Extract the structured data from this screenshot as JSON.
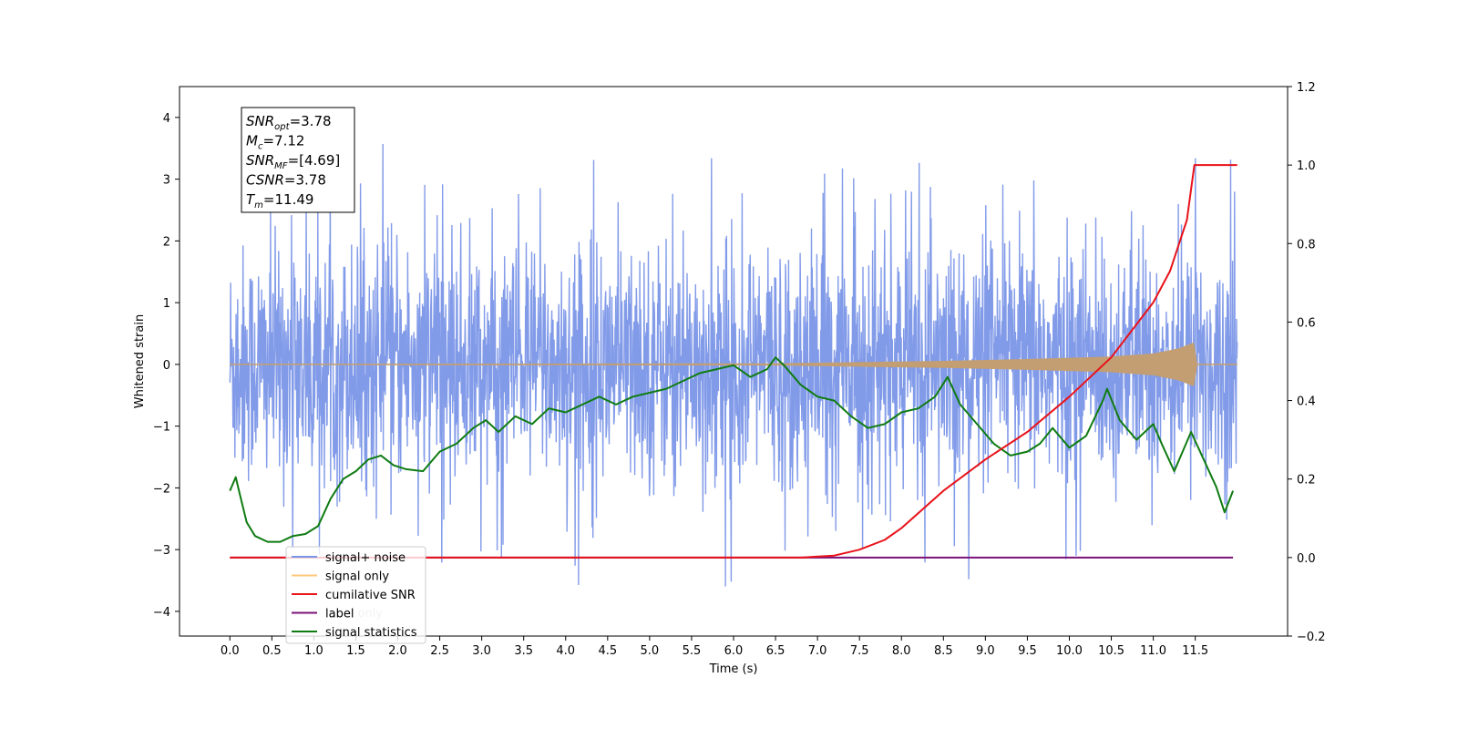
{
  "chart_data": {
    "type": "line",
    "xlabel": "Time (s)",
    "ylabel": "Whitened strain",
    "xlim": [
      -0.6,
      12.6
    ],
    "ylim_left": [
      -4.4,
      4.5
    ],
    "ylim_right": [
      -0.2,
      1.2
    ],
    "x_ticks": [
      0.0,
      0.5,
      1.0,
      1.5,
      2.0,
      2.5,
      3.0,
      3.5,
      4.0,
      4.5,
      5.0,
      5.5,
      6.0,
      6.5,
      7.0,
      7.5,
      8.0,
      8.5,
      9.0,
      9.5,
      10.0,
      10.5,
      11.0,
      11.5
    ],
    "x_tick_labels": [
      "0.0",
      "0.5",
      "1.0",
      "1.5",
      "2.0",
      "2.5",
      "3.0",
      "3.5",
      "4.0",
      "4.5",
      "5.0",
      "5.5",
      "6.0",
      "6.5",
      "7.0",
      "7.5",
      "8.0",
      "8.5",
      "9.0",
      "9.5",
      "10.0",
      "10.5",
      "11.0",
      "11.5"
    ],
    "y_left_ticks": [
      -4,
      -3,
      -2,
      -1,
      0,
      1,
      2,
      3,
      4
    ],
    "y_left_tick_labels": [
      "−4",
      "−3",
      "−2",
      "−1",
      "0",
      "1",
      "2",
      "3",
      "4"
    ],
    "y_right_ticks": [
      -0.2,
      0.0,
      0.2,
      0.4,
      0.6,
      0.8,
      1.0,
      1.2
    ],
    "y_right_tick_labels": [
      "−0.2",
      "0.0",
      "0.2",
      "0.4",
      "0.6",
      "0.8",
      "1.0",
      "1.2"
    ],
    "info_box": {
      "lines": [
        {
          "sym": "SNR",
          "sub": "opt",
          "val": "=3.78"
        },
        {
          "sym": "M",
          "sub": "c",
          "val": "=7.12"
        },
        {
          "sym": "SNR",
          "sub": "MF",
          "val": "=[4.69]"
        },
        {
          "sym": "CSNR",
          "sub": "",
          "val": "=3.78"
        },
        {
          "sym": "T",
          "sub": "m",
          "val": "=11.49"
        }
      ]
    },
    "legend": {
      "position": "lower-left",
      "entries": [
        {
          "label": "signal+ noise",
          "color": "#7b96e8"
        },
        {
          "label": "signal only",
          "color": "#ffc87a"
        },
        {
          "label": "cumilative SNR",
          "color": "#e8121a"
        },
        {
          "label": "label",
          "color": "#7b1177"
        },
        {
          "label": "signal statistics",
          "color": "#0f7b12"
        }
      ]
    },
    "overlap_text": "label only",
    "series": [
      {
        "name": "signal+ noise",
        "axis": "left",
        "color": "#7b96e8",
        "x_range": [
          0.0,
          12.0
        ],
        "amplitude_range": [
          -3.8,
          4.1
        ],
        "typical_band": [
          -1.6,
          1.6
        ]
      },
      {
        "name": "signal only",
        "axis": "left",
        "color": "#c29e72",
        "x_range": [
          0.0,
          12.0
        ],
        "envelope": {
          "x": [
            0.0,
            6.5,
            7.5,
            8.5,
            9.5,
            10.5,
            11.0,
            11.3,
            11.49,
            11.5,
            12.0
          ],
          "amp": [
            0.0,
            0.01,
            0.03,
            0.05,
            0.08,
            0.12,
            0.17,
            0.25,
            0.35,
            0.0,
            0.0
          ]
        }
      },
      {
        "name": "cumilative SNR",
        "axis": "right",
        "color": "#e8121a",
        "x": [
          0.0,
          6.8,
          7.2,
          7.5,
          7.8,
          8.0,
          8.5,
          9.0,
          9.5,
          10.0,
          10.5,
          11.0,
          11.2,
          11.4,
          11.49,
          11.5,
          12.0
        ],
        "y": [
          0.0,
          0.0,
          0.005,
          0.02,
          0.045,
          0.075,
          0.17,
          0.25,
          0.32,
          0.41,
          0.51,
          0.65,
          0.73,
          0.86,
          1.0,
          1.0,
          1.0
        ]
      },
      {
        "name": "label",
        "axis": "right",
        "color": "#7b1177",
        "x": [
          0.0,
          11.95
        ],
        "y": [
          0.0,
          0.0
        ]
      },
      {
        "name": "signal statistics",
        "axis": "right",
        "color": "#0f7b12",
        "x": [
          0.0,
          0.07,
          0.12,
          0.2,
          0.3,
          0.45,
          0.6,
          0.75,
          0.9,
          1.05,
          1.2,
          1.35,
          1.5,
          1.65,
          1.8,
          1.95,
          2.1,
          2.3,
          2.5,
          2.7,
          2.9,
          3.05,
          3.2,
          3.4,
          3.6,
          3.8,
          4.0,
          4.2,
          4.4,
          4.6,
          4.8,
          5.0,
          5.2,
          5.4,
          5.6,
          5.8,
          6.0,
          6.2,
          6.4,
          6.5,
          6.6,
          6.8,
          7.0,
          7.2,
          7.4,
          7.6,
          7.8,
          8.0,
          8.2,
          8.4,
          8.55,
          8.7,
          8.9,
          9.1,
          9.3,
          9.5,
          9.65,
          9.8,
          10.0,
          10.2,
          10.4,
          10.45,
          10.6,
          10.8,
          11.0,
          11.1,
          11.25,
          11.35,
          11.45,
          11.6,
          11.75,
          11.85,
          11.95
        ],
        "y": [
          0.17,
          0.205,
          0.16,
          0.09,
          0.055,
          0.04,
          0.04,
          0.055,
          0.06,
          0.08,
          0.15,
          0.2,
          0.22,
          0.25,
          0.26,
          0.235,
          0.225,
          0.22,
          0.27,
          0.29,
          0.33,
          0.35,
          0.32,
          0.36,
          0.34,
          0.38,
          0.37,
          0.39,
          0.41,
          0.39,
          0.41,
          0.42,
          0.43,
          0.45,
          0.47,
          0.48,
          0.49,
          0.46,
          0.48,
          0.51,
          0.49,
          0.44,
          0.41,
          0.4,
          0.36,
          0.33,
          0.34,
          0.37,
          0.38,
          0.41,
          0.46,
          0.39,
          0.34,
          0.29,
          0.26,
          0.27,
          0.29,
          0.33,
          0.28,
          0.31,
          0.4,
          0.43,
          0.35,
          0.3,
          0.34,
          0.29,
          0.22,
          0.27,
          0.32,
          0.25,
          0.18,
          0.115,
          0.17
        ]
      }
    ]
  }
}
